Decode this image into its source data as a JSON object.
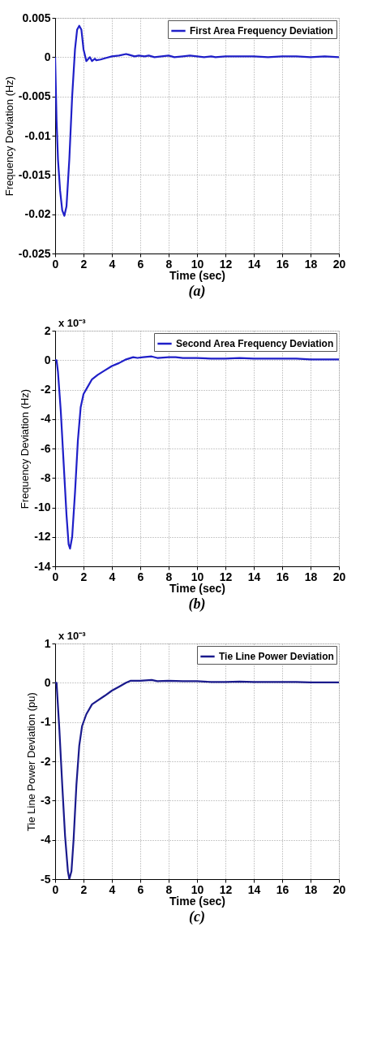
{
  "chart_data": [
    {
      "type": "line",
      "title": "(a)",
      "xlabel": "Time (sec)",
      "ylabel": "Frequency Deviation (Hz)",
      "xlim": [
        0,
        20
      ],
      "ylim": [
        -0.025,
        0.005
      ],
      "xticks": [
        0,
        2,
        4,
        6,
        8,
        10,
        12,
        14,
        16,
        18,
        20
      ],
      "yticks": [
        -0.025,
        -0.02,
        -0.015,
        -0.01,
        -0.005,
        0,
        0.005
      ],
      "grid": true,
      "legend": "top right",
      "line_style": "solid",
      "series": [
        {
          "name": "First Area Frequency Deviation",
          "color": "#1f1fc8",
          "x": [
            0,
            0.1,
            0.2,
            0.35,
            0.5,
            0.65,
            0.8,
            1.0,
            1.2,
            1.4,
            1.55,
            1.7,
            1.85,
            2.0,
            2.2,
            2.35,
            2.45,
            2.6,
            2.8,
            2.9,
            3.2,
            3.6,
            4.0,
            4.5,
            5.0,
            5.2,
            5.6,
            5.9,
            6.3,
            6.6,
            7.0,
            7.5,
            8.0,
            8.4,
            9.0,
            9.5,
            10,
            10.5,
            11,
            11.3,
            12,
            13,
            14,
            15,
            16,
            17,
            18,
            19,
            20
          ],
          "values": [
            0,
            -0.008,
            -0.013,
            -0.017,
            -0.0195,
            -0.0202,
            -0.019,
            -0.013,
            -0.005,
            0.001,
            0.0035,
            0.004,
            0.0035,
            0.001,
            -0.0005,
            -0.0002,
            0.0,
            -0.0005,
            -0.0002,
            -0.0004,
            -0.0003,
            -0.0001,
            0.0001,
            0.0002,
            0.0004,
            0.0003,
            0.0001,
            0.0002,
            0.0001,
            0.0002,
            0,
            0.0001,
            0.0002,
            0,
            0.0001,
            0.0002,
            0.0001,
            0,
            0.0001,
            0,
            0.0001,
            0.0001,
            0.0001,
            0,
            0.0001,
            0.0001,
            0,
            0.0001,
            0
          ]
        }
      ]
    },
    {
      "type": "line",
      "title": "(b)",
      "xlabel": "Time (sec)",
      "ylabel": "Frequency Deviation (Hz)",
      "annotations": [
        "x 10⁻³"
      ],
      "xlim": [
        0,
        20
      ],
      "ylim": [
        -14,
        2
      ],
      "xticks": [
        0,
        2,
        4,
        6,
        8,
        10,
        12,
        14,
        16,
        18,
        20
      ],
      "yticks": [
        -14,
        -12,
        -10,
        -8,
        -6,
        -4,
        -2,
        0,
        2
      ],
      "grid": true,
      "legend": "top right",
      "line_style": "solid",
      "series": [
        {
          "name": "Second Area Frequency Deviation",
          "color": "#1f1fc8",
          "x": [
            0,
            0.1,
            0.2,
            0.4,
            0.6,
            0.8,
            0.95,
            1.05,
            1.2,
            1.4,
            1.6,
            1.8,
            2.0,
            2.3,
            2.6,
            3.0,
            3.5,
            4.0,
            4.5,
            5.0,
            5.5,
            5.8,
            6.2,
            6.8,
            7.2,
            8.0,
            8.5,
            9,
            10,
            11,
            12,
            13,
            14,
            15,
            16,
            17,
            18,
            19,
            20
          ],
          "values": [
            0,
            0,
            -0.8,
            -3.5,
            -7,
            -10.5,
            -12.5,
            -12.8,
            -12,
            -9,
            -5.5,
            -3.2,
            -2.3,
            -1.8,
            -1.3,
            -1.0,
            -0.7,
            -0.4,
            -0.2,
            0.05,
            0.2,
            0.15,
            0.2,
            0.25,
            0.15,
            0.2,
            0.2,
            0.15,
            0.15,
            0.1,
            0.1,
            0.15,
            0.1,
            0.1,
            0.1,
            0.1,
            0.05,
            0.05,
            0.05
          ]
        }
      ]
    },
    {
      "type": "line",
      "title": "(c)",
      "xlabel": "Time (sec)",
      "ylabel": "Tie Line Power Deviation (pu)",
      "annotations": [
        "x 10⁻³"
      ],
      "xlim": [
        0,
        20
      ],
      "ylim": [
        -5,
        1
      ],
      "xticks": [
        0,
        2,
        4,
        6,
        8,
        10,
        12,
        14,
        16,
        18,
        20
      ],
      "yticks": [
        -5,
        -4,
        -3,
        -2,
        -1,
        0,
        1
      ],
      "grid": true,
      "legend": "top right",
      "line_style": "solid",
      "series": [
        {
          "name": "Tie Line Power Deviation",
          "color": "#1a1a8c",
          "x": [
            0,
            0.1,
            0.3,
            0.5,
            0.7,
            0.9,
            1.0,
            1.15,
            1.3,
            1.5,
            1.7,
            1.9,
            2.2,
            2.6,
            3.0,
            3.5,
            4.0,
            4.5,
            5.0,
            5.3,
            6,
            6.8,
            7.2,
            8,
            9,
            10,
            11,
            12,
            13,
            14,
            15,
            16,
            17,
            18,
            19,
            20
          ],
          "values": [
            0,
            0,
            -1.2,
            -2.6,
            -3.9,
            -4.8,
            -5.0,
            -4.8,
            -4.0,
            -2.6,
            -1.6,
            -1.1,
            -0.8,
            -0.55,
            -0.45,
            -0.33,
            -0.2,
            -0.1,
            0,
            0.05,
            0.05,
            0.07,
            0.04,
            0.05,
            0.04,
            0.04,
            0.02,
            0.02,
            0.03,
            0.02,
            0.02,
            0.02,
            0.02,
            0.01,
            0.01,
            0.01
          ]
        }
      ]
    }
  ]
}
